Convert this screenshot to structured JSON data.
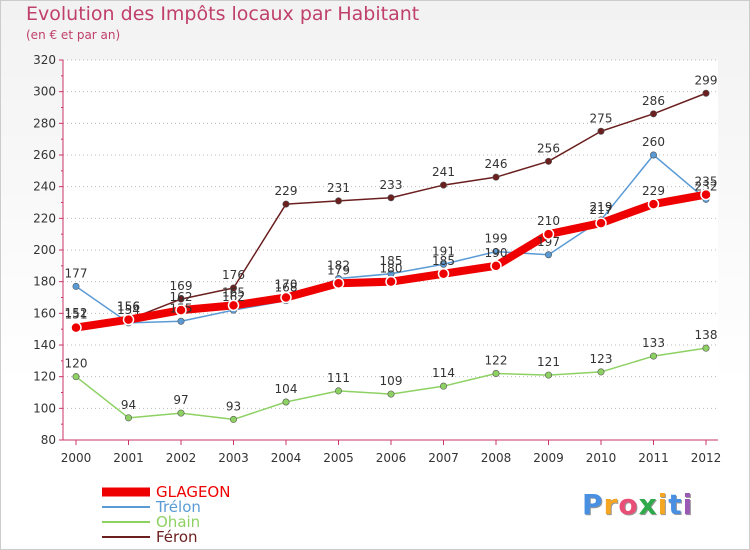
{
  "page": {
    "title": "Evolution des Impôts locaux par Habitant",
    "subtitle": "(en € et par an)",
    "logo": {
      "text": "Proxiti",
      "colors": [
        "#4a90e2",
        "#f5a623",
        "#e94e77",
        "#2eaa4a",
        "#f5a623",
        "#4a90e2",
        "#9b59b6"
      ]
    }
  },
  "chart_data": {
    "type": "line",
    "title": "Evolution des Impôts locaux par Habitant",
    "subtitle": "(en € et par an)",
    "xlabel": "",
    "ylabel": "",
    "ylim": [
      80,
      320
    ],
    "ytick_step": 20,
    "categories": [
      "2000",
      "2001",
      "2002",
      "2003",
      "2004",
      "2005",
      "2006",
      "2007",
      "2008",
      "2009",
      "2010",
      "2011",
      "2012"
    ],
    "series": [
      {
        "name": "Féron",
        "color": "#6b1f1f",
        "width": 1.5,
        "values": [
          152,
          156,
          169,
          176,
          229,
          231,
          233,
          241,
          246,
          256,
          275,
          286,
          299
        ]
      },
      {
        "name": "Trélon",
        "color": "#5b9bd5",
        "width": 1.5,
        "values": [
          177,
          154,
          155,
          162,
          168,
          182,
          185,
          191,
          199,
          197,
          219,
          260,
          232
        ]
      },
      {
        "name": "Ohain",
        "color": "#8ed163",
        "width": 1.5,
        "values": [
          120,
          94,
          97,
          93,
          104,
          111,
          109,
          114,
          122,
          121,
          123,
          133,
          138
        ]
      },
      {
        "name": "GLAGEON",
        "color": "#ee0000",
        "width": 8,
        "values": [
          151,
          156,
          162,
          165,
          170,
          179,
          180,
          185,
          190,
          210,
          217,
          229,
          235
        ]
      }
    ],
    "legend": [
      "GLAGEON",
      "Trélon",
      "Ohain",
      "Féron"
    ],
    "legend_placement": "bottom-left",
    "grid": "horizontal-dotted"
  }
}
